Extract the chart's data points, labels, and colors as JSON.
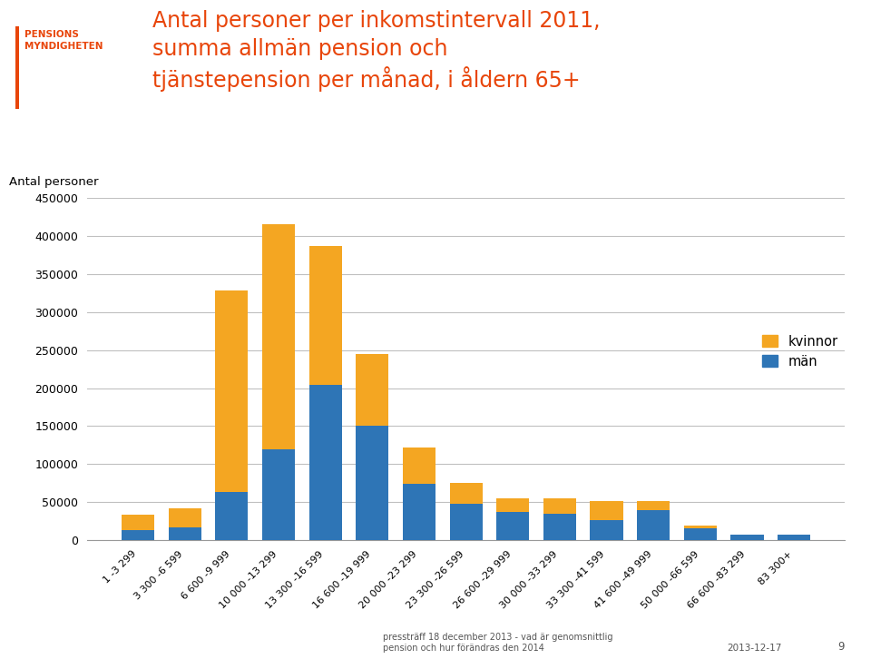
{
  "categories": [
    "1 -3 299",
    "3 300 -6 599",
    "6 600 -9 999",
    "10 000 -13 299",
    "13 300 -16 599",
    "16 600 -19 999",
    "20 000 -23 299",
    "23 300 -26 599",
    "26 600 -29 999",
    "30 000 -33 299",
    "33 300 -41 599",
    "41 600 -49 999",
    "50 000 -66 599",
    "66 600 -83 299",
    "83 300+"
  ],
  "men": [
    14000,
    17000,
    63000,
    120000,
    204000,
    150000,
    74000,
    48000,
    37000,
    35000,
    27000,
    40000,
    16000,
    7000,
    7000
  ],
  "women": [
    20000,
    25000,
    265000,
    295000,
    182000,
    95000,
    48000,
    27000,
    18000,
    20000,
    25000,
    12000,
    4000,
    1000,
    1000
  ],
  "color_men": "#2E75B6",
  "color_women": "#F4A622",
  "title_line1": "Antal personer per inkomstintervall 2011,",
  "title_line2": "summa allmän pension och",
  "title_line3": "tjänstepension per månad, i åldern 65+",
  "ylabel": "Antal personer",
  "ylim": [
    0,
    450000
  ],
  "yticks": [
    0,
    50000,
    100000,
    150000,
    200000,
    250000,
    300000,
    350000,
    400000,
    450000
  ],
  "ytick_labels": [
    "0",
    "50000",
    "100000",
    "150000",
    "200000",
    "250000",
    "300000",
    "350000",
    "400000",
    "450000"
  ],
  "legend_kvinnor": "kvinnor",
  "legend_man": "män",
  "footer_left": "presstrf 18 december 2013 - vad är genomsnittlig\npension och hur förändras den 2014",
  "footer_left_full": "pressträff 18 december 2013 - vad är genomsnittlig\npension och hur förändras den 2014",
  "footer_date": "2013-12-17",
  "footer_page": "9",
  "bg_color": "#FFFFFF",
  "title_color": "#E8450A",
  "logo_line1": "PENSIONS",
  "logo_line2": "MYNDIGHETEN",
  "logo_color": "#E8450A",
  "bar_width": 0.7
}
